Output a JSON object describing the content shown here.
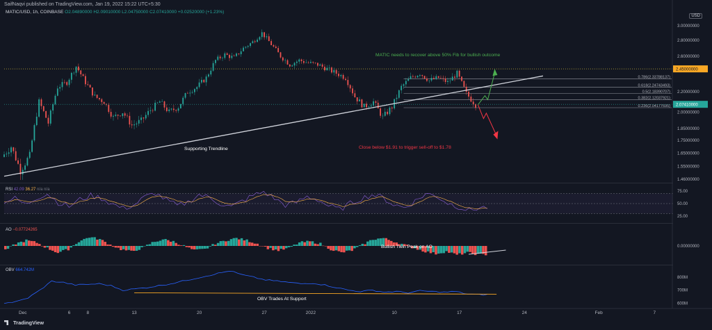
{
  "header": {
    "author": "SaifNaqvi",
    "published": "published on TradingView.com, Jan 19, 2022 15:22 UTC+5:30"
  },
  "symbol": {
    "name": "MATIC/USD, 1h, COINBASE",
    "ohlc": "O2.04890000  H2.09010000  L2.04750000  C2.07410000  +0.02520000 (+1.23%)",
    "currency": "USD"
  },
  "price_axis": {
    "ticks": [
      "3.00000000",
      "2.80000000",
      "2.60000000",
      "2.20000000",
      "2.00000000",
      "1.85000000",
      "1.75000000",
      "1.65000000",
      "1.55000000",
      "1.46000000"
    ],
    "current_price": "2.07410000",
    "resistance_price": "2.45000000"
  },
  "time_axis": {
    "ticks": [
      "Dec",
      "6",
      "8",
      "13",
      "20",
      "27",
      "2022",
      "10",
      "17",
      "24",
      "Feb",
      "7"
    ]
  },
  "fib_levels": [
    {
      "label": "0.786(2.33788137)"
    },
    {
      "label": "0.618(2.24743493)"
    },
    {
      "label": "0.5(2.18390707)"
    },
    {
      "label": "0.382(2.12037921)"
    },
    {
      "label": "0.236(2.04177695)"
    }
  ],
  "annotations": {
    "bullish": "MATIC needs to recover above 50% Fib for bullish outcome",
    "bearish": "Close below $1.91 to trigger sell-off to $1.78",
    "trendline": "Supporting Trendline",
    "ao_note": "Bullish Twin Peak on AO",
    "obv_note": "OBV Trades At Support"
  },
  "rsi": {
    "label": "RSI",
    "value1": "42.09",
    "value2": "36.27",
    "extra": "n/a  n/a",
    "ticks": [
      "75.00",
      "50.00",
      "25.00"
    ]
  },
  "ao": {
    "label": "AO",
    "value": "−0.07724265",
    "ticks": [
      "0.00000000"
    ]
  },
  "obv": {
    "label": "OBV",
    "value": "664.742M",
    "ticks": [
      "800M",
      "700M",
      "600M"
    ]
  },
  "brand": "TradingView",
  "colors": {
    "bg": "#131722",
    "green": "#26a69a",
    "red": "#ef5350",
    "rsi": "#7e57c2",
    "rsi_signal": "#ffb74d",
    "obv": "#2962ff",
    "support": "#f9a825",
    "bull_text": "#4caf50",
    "bear_text": "#f23645"
  },
  "chart_data": [
    {
      "type": "line",
      "title": "MATIC/USD, 1h, COINBASE",
      "ylabel": "USD",
      "x_range": [
        "2021-11-29",
        "2022-02-09"
      ],
      "ylim": [
        1.44,
        3.05
      ],
      "series": [
        {
          "name": "MATIC/USD",
          "points": [
            [
              "2021-11-29",
              1.62
            ],
            [
              "2021-11-30",
              1.7
            ],
            [
              "2021-12-01",
              1.52
            ],
            [
              "2021-12-02",
              1.63
            ],
            [
              "2021-12-03",
              2.1
            ],
            [
              "2021-12-04",
              1.9
            ],
            [
              "2021-12-05",
              2.25
            ],
            [
              "2021-12-06",
              2.3
            ],
            [
              "2021-12-07",
              2.48
            ],
            [
              "2021-12-08",
              2.3
            ],
            [
              "2021-12-09",
              2.15
            ],
            [
              "2021-12-10",
              2.1
            ],
            [
              "2021-12-11",
              1.95
            ],
            [
              "2021-12-12",
              2.0
            ],
            [
              "2021-12-13",
              1.88
            ],
            [
              "2021-12-14",
              1.92
            ],
            [
              "2021-12-15",
              2.02
            ],
            [
              "2021-12-16",
              2.1
            ],
            [
              "2021-12-17",
              2.0
            ],
            [
              "2021-12-18",
              2.05
            ],
            [
              "2021-12-19",
              2.2
            ],
            [
              "2021-12-20",
              2.25
            ],
            [
              "2021-12-21",
              2.35
            ],
            [
              "2021-12-22",
              2.55
            ],
            [
              "2021-12-23",
              2.62
            ],
            [
              "2021-12-24",
              2.58
            ],
            [
              "2021-12-25",
              2.7
            ],
            [
              "2021-12-26",
              2.78
            ],
            [
              "2021-12-27",
              2.9
            ],
            [
              "2021-12-28",
              2.75
            ],
            [
              "2021-12-29",
              2.6
            ],
            [
              "2021-12-30",
              2.5
            ],
            [
              "2021-12-31",
              2.55
            ],
            [
              "2022-01-01",
              2.52
            ],
            [
              "2022-01-02",
              2.5
            ],
            [
              "2022-01-03",
              2.45
            ],
            [
              "2022-01-04",
              2.4
            ],
            [
              "2022-01-05",
              2.35
            ],
            [
              "2022-01-06",
              2.15
            ],
            [
              "2022-01-07",
              2.05
            ],
            [
              "2022-01-08",
              2.1
            ],
            [
              "2022-01-09",
              1.95
            ],
            [
              "2022-01-10",
              2.05
            ],
            [
              "2022-01-11",
              2.25
            ],
            [
              "2022-01-12",
              2.35
            ],
            [
              "2022-01-13",
              2.4
            ],
            [
              "2022-01-14",
              2.32
            ],
            [
              "2022-01-15",
              2.35
            ],
            [
              "2022-01-16",
              2.3
            ],
            [
              "2022-01-17",
              2.4
            ],
            [
              "2022-01-18",
              2.18
            ],
            [
              "2022-01-19",
              2.07
            ]
          ]
        }
      ],
      "horizontal_lines": [
        2.45
      ],
      "fib_retracement": [
        2.33788137,
        2.24743493,
        2.18390707,
        2.12037921,
        2.04177695
      ],
      "trendline": [
        [
          "2021-11-29",
          1.48
        ],
        [
          "2022-01-26",
          2.37
        ]
      ]
    },
    {
      "type": "line",
      "title": "RSI",
      "ylim": [
        15,
        85
      ],
      "band": [
        30,
        70
      ],
      "series": [
        {
          "name": "RSI",
          "values": [
            55,
            60,
            48,
            62,
            70,
            52,
            44,
            58,
            66,
            61,
            49,
            40,
            47,
            63,
            71,
            57,
            45,
            53,
            68,
            62,
            50,
            43,
            55,
            66,
            74,
            60,
            47,
            52,
            64,
            58,
            45,
            38,
            50,
            60,
            68,
            62,
            48,
            42,
            55,
            70,
            65,
            51,
            44,
            36,
            42
          ]
        }
      ]
    },
    {
      "type": "bar",
      "title": "AO",
      "series": [
        {
          "name": "AO",
          "values": [
            -0.04,
            0.02,
            0.05,
            0.03,
            -0.02,
            -0.06,
            -0.03,
            0.04,
            0.08,
            0.06,
            0.01,
            -0.03,
            -0.05,
            -0.02,
            0.03,
            0.06,
            0.04,
            0.0,
            -0.04,
            -0.03,
            0.02,
            0.05,
            0.07,
            0.05,
            0.02,
            -0.02,
            -0.04,
            -0.02,
            0.03,
            0.04,
            0.02,
            -0.03,
            -0.06,
            -0.04,
            0.01,
            0.06,
            0.07,
            0.04,
            0.01,
            -0.02,
            -0.05,
            -0.07,
            -0.05,
            -0.08,
            -0.06,
            -0.077
          ]
        }
      ]
    },
    {
      "type": "line",
      "title": "OBV",
      "ylim": [
        580,
        860
      ],
      "series": [
        {
          "name": "OBV",
          "values": [
            600,
            610,
            640,
            700,
            770,
            760,
            740,
            745,
            750,
            735,
            700,
            710,
            720,
            735,
            750,
            770,
            790,
            810,
            830,
            850,
            820,
            800,
            780,
            770,
            760,
            750,
            755,
            740,
            720,
            700,
            690,
            700,
            685,
            690,
            680,
            695,
            690,
            685,
            690,
            670,
            665
          ]
        }
      ],
      "support_level": 680
    }
  ]
}
